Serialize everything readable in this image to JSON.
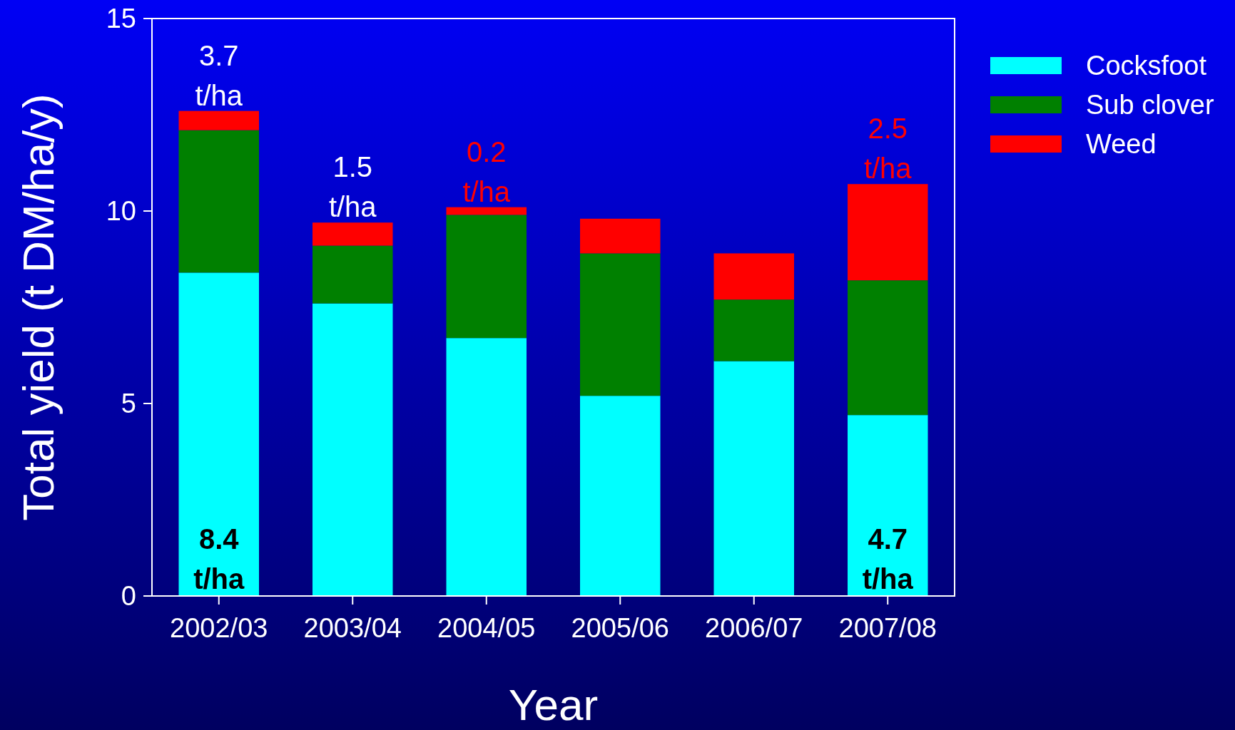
{
  "chart_data": {
    "type": "bar",
    "stacked": true,
    "xlabel": "Year",
    "ylabel": "Total yield (t DM/ha/y)",
    "categories": [
      "2002/03",
      "2003/04",
      "2004/05",
      "2005/06",
      "2006/07",
      "2007/08"
    ],
    "series": [
      {
        "name": "Cocksfoot",
        "color": "#00ffff",
        "values": [
          8.4,
          7.6,
          6.7,
          5.2,
          6.1,
          4.7
        ],
        "value_labels": [
          "8.4 t/ha",
          null,
          null,
          null,
          null,
          "4.7 t/ha"
        ]
      },
      {
        "name": "Sub clover",
        "color": "#008000",
        "values": [
          3.7,
          1.5,
          3.2,
          3.7,
          1.6,
          3.5
        ],
        "value_labels": [
          "3.7 t/ha",
          "1.5 t/ha",
          null,
          null,
          null,
          null
        ]
      },
      {
        "name": "Weed",
        "color": "#ff0000",
        "values": [
          0.5,
          0.6,
          0.2,
          0.9,
          1.2,
          2.5
        ],
        "value_labels": [
          null,
          null,
          "0.2 t/ha",
          null,
          null,
          "2.5 t/ha"
        ]
      }
    ],
    "ylim": [
      0,
      15
    ],
    "yticks": [
      0,
      5,
      10,
      15
    ],
    "grid": false,
    "legend": "top right"
  }
}
